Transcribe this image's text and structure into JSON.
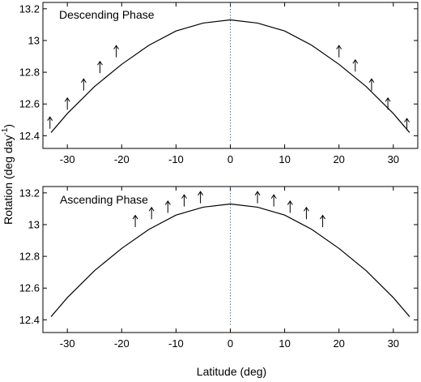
{
  "figure": {
    "shared_ylabel_prefix": "Rotation (deg day",
    "shared_ylabel_sup": "-1",
    "shared_ylabel_suffix": ")",
    "shared_xlabel": "Latitude (deg)"
  },
  "chart_data": [
    {
      "type": "line",
      "title": "Descending Phase",
      "xlabel": "",
      "ylabel": "Rotation (deg day-1)",
      "xlim": [
        -34.5,
        34.5
      ],
      "ylim": [
        12.32,
        13.24
      ],
      "x_ticks": [
        -30,
        -20,
        -10,
        0,
        10,
        20,
        30
      ],
      "x_tick_labels": [
        "-30",
        "-20",
        "-10",
        "0",
        "10",
        "20",
        "30"
      ],
      "y_ticks": [
        12.4,
        12.6,
        12.8,
        13,
        13.2
      ],
      "y_tick_labels": [
        "12.4",
        "12.6",
        "12.8",
        "13",
        "13.2"
      ],
      "grid": false,
      "vline_x": 0,
      "series": [
        {
          "kind": "curve",
          "x": [
            -33,
            -30,
            -25,
            -20,
            -15,
            -10,
            -5,
            0,
            5,
            10,
            15,
            20,
            25,
            30,
            33
          ],
          "y": [
            12.42,
            12.54,
            12.71,
            12.85,
            12.97,
            13.06,
            13.11,
            13.13,
            13.11,
            13.06,
            12.97,
            12.85,
            12.71,
            12.54,
            12.42
          ]
        },
        {
          "kind": "arrows",
          "x": [
            -33.2,
            -30,
            -27,
            -24,
            -21,
            20,
            23,
            26,
            29,
            32.5
          ],
          "y": [
            12.48,
            12.6,
            12.72,
            12.83,
            12.93,
            12.93,
            12.84,
            12.72,
            12.6,
            12.47
          ]
        }
      ]
    },
    {
      "type": "line",
      "title": "Ascending Phase",
      "xlabel": "Latitude (deg)",
      "ylabel": "Rotation (deg day-1)",
      "xlim": [
        -34.5,
        34.5
      ],
      "ylim": [
        12.32,
        13.24
      ],
      "x_ticks": [
        -30,
        -20,
        -10,
        0,
        10,
        20,
        30
      ],
      "x_tick_labels": [
        "-30",
        "-20",
        "-10",
        "0",
        "10",
        "20",
        "30"
      ],
      "y_ticks": [
        12.4,
        12.6,
        12.8,
        13,
        13.2
      ],
      "y_tick_labels": [
        "12.4",
        "12.6",
        "12.8",
        "13",
        "13.2"
      ],
      "grid": false,
      "vline_x": 0,
      "series": [
        {
          "kind": "curve",
          "x": [
            -33,
            -30,
            -25,
            -20,
            -15,
            -10,
            -5,
            0,
            5,
            10,
            15,
            20,
            25,
            30,
            33
          ],
          "y": [
            12.42,
            12.54,
            12.71,
            12.85,
            12.97,
            13.06,
            13.11,
            13.13,
            13.11,
            13.06,
            12.97,
            12.85,
            12.71,
            12.54,
            12.42
          ]
        },
        {
          "kind": "arrows",
          "x": [
            -17.5,
            -14.5,
            -11.5,
            -8.5,
            -5.5,
            5,
            8,
            11,
            14,
            17
          ],
          "y": [
            13.02,
            13.07,
            13.11,
            13.15,
            13.17,
            13.17,
            13.15,
            13.11,
            13.07,
            13.02
          ]
        }
      ]
    }
  ]
}
